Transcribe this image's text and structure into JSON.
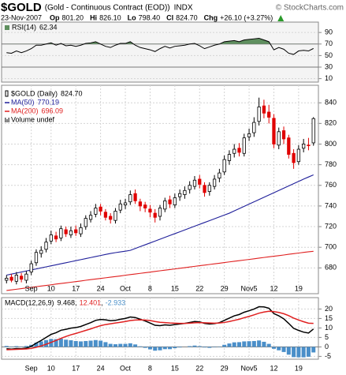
{
  "header": {
    "symbol": "$GOLD",
    "description": "(Gold - Continuous Contract (EOD))",
    "exchange": "INDX",
    "copyright": "© StockCharts.com",
    "date": "23-Nov-2007",
    "quote": [
      {
        "label": "Op",
        "value": "801.20"
      },
      {
        "label": "Hi",
        "value": "826.10"
      },
      {
        "label": "Lo",
        "value": "798.40"
      },
      {
        "label": "Cl",
        "value": "824.70"
      },
      {
        "label": "Chg",
        "value": "+26.10 (+3.27%)"
      }
    ]
  },
  "chart_data": [
    {
      "type": "line",
      "xlim": [
        -1,
        63
      ],
      "ylim": [
        4,
        108
      ],
      "yticks": [
        90,
        70,
        50,
        30,
        10
      ],
      "emphasized_ticks": [
        70,
        30
      ],
      "fill_above": 70,
      "fill_color": "#5f8f5f",
      "series": [
        {
          "name": "RSI(14)",
          "color": "#000000",
          "values": [
            55,
            54,
            58,
            55,
            58,
            62,
            68,
            68,
            70,
            72,
            68,
            71,
            67,
            68,
            66,
            68,
            71,
            72,
            74,
            70,
            66,
            64,
            68,
            71,
            71,
            74,
            68,
            64,
            62,
            60,
            57,
            62,
            66,
            63,
            66,
            67,
            68,
            70,
            71,
            67,
            62,
            65,
            68,
            70,
            74,
            75,
            76,
            74,
            77,
            78,
            79,
            80,
            77,
            74,
            60,
            64,
            61,
            54,
            52,
            58,
            59,
            58,
            62.34
          ]
        }
      ]
    },
    {
      "type": "candlestick",
      "xlim": [
        -1,
        63
      ],
      "ylim": [
        655,
        857
      ],
      "yticks": [
        680,
        700,
        720,
        740,
        760,
        780,
        800,
        820,
        840
      ],
      "xticks": [
        {
          "value": 5,
          "label": "Sep"
        },
        {
          "value": 9,
          "label": "10"
        },
        {
          "value": 14,
          "label": "17"
        },
        {
          "value": 19,
          "label": "24"
        },
        {
          "value": 24,
          "label": "Oct"
        },
        {
          "value": 29,
          "label": "8"
        },
        {
          "value": 34,
          "label": "15"
        },
        {
          "value": 39,
          "label": "22"
        },
        {
          "value": 44,
          "label": "29"
        },
        {
          "value": 49,
          "label": "Nov5"
        },
        {
          "value": 54,
          "label": "12"
        },
        {
          "value": 59,
          "label": "19"
        }
      ],
      "name": "$GOLD (Daily)",
      "legend_value_label": "824.70",
      "volume_label": "Volume undef",
      "up_color": "#000000",
      "down_color": "#e00000",
      "open": [
        668,
        671,
        667,
        672,
        668,
        676,
        685,
        694,
        698,
        706,
        711,
        709,
        717,
        712,
        717,
        713,
        720,
        727,
        732,
        739,
        734,
        730,
        726,
        736,
        741,
        744,
        752,
        744,
        741,
        737,
        733,
        730,
        737,
        746,
        741,
        749,
        751,
        756,
        759,
        766,
        760,
        754,
        759,
        767,
        773,
        784,
        791,
        796,
        791,
        807,
        811,
        822,
        837,
        831,
        825,
        799,
        813,
        806,
        791,
        783,
        796,
        799,
        801.2
      ],
      "high": [
        673,
        674,
        676,
        675,
        677,
        687,
        698,
        701,
        709,
        716,
        715,
        721,
        720,
        720,
        721,
        723,
        731,
        735,
        742,
        742,
        737,
        733,
        738,
        746,
        747,
        755,
        756,
        747,
        744,
        741,
        737,
        741,
        748,
        750,
        752,
        756,
        759,
        764,
        769,
        770,
        763,
        763,
        770,
        776,
        789,
        794,
        800,
        801,
        810,
        815,
        826,
        845,
        843,
        838,
        829,
        816,
        817,
        809,
        795,
        799,
        805,
        806,
        826.1
      ],
      "low": [
        665,
        666,
        664,
        666,
        665,
        673,
        682,
        690,
        695,
        703,
        705,
        706,
        710,
        709,
        711,
        710,
        717,
        724,
        729,
        731,
        726,
        723,
        723,
        733,
        737,
        741,
        742,
        735,
        734,
        729,
        724,
        726,
        734,
        738,
        738,
        745,
        747,
        752,
        756,
        757,
        749,
        750,
        756,
        763,
        770,
        780,
        787,
        788,
        788,
        803,
        807,
        818,
        825,
        820,
        796,
        795,
        800,
        786,
        776,
        780,
        792,
        794,
        798.4
      ],
      "close": [
        670,
        668,
        673,
        669,
        674,
        684,
        695,
        697,
        705,
        712,
        708,
        718,
        713,
        716,
        714,
        719,
        728,
        731,
        738,
        735,
        729,
        727,
        735,
        742,
        743,
        751,
        745,
        740,
        738,
        734,
        729,
        738,
        745,
        742,
        748,
        752,
        755,
        760,
        765,
        761,
        753,
        760,
        766,
        772,
        785,
        790,
        795,
        792,
        806,
        810,
        821,
        836,
        830,
        826,
        800,
        812,
        805,
        790,
        782,
        795,
        800,
        798.6,
        824.7
      ],
      "overlays": [
        {
          "name": "MA(50)",
          "color": "#1f1f9a",
          "values": [
            673,
            674,
            675,
            676,
            677,
            678,
            679,
            680,
            681,
            682,
            683,
            684,
            685,
            686,
            687,
            688,
            689,
            690,
            691,
            692,
            693,
            694,
            694.8,
            695.5,
            696.2,
            697,
            698.8,
            700.6,
            702.4,
            704.2,
            706,
            707.8,
            709.6,
            711.4,
            713.2,
            715,
            716.8,
            718.6,
            720.4,
            722.2,
            724,
            725.8,
            727.6,
            729.4,
            731.2,
            733,
            735.2,
            737.4,
            739.6,
            741.8,
            744,
            746.2,
            748.4,
            750.6,
            752.8,
            755,
            757.2,
            759.4,
            761.6,
            763.8,
            766,
            768.1,
            770.19
          ]
        },
        {
          "name": "MA(200)",
          "color": "#e02020",
          "values": [
            658.1,
            658.7,
            659.3,
            659.9,
            660.6,
            661.2,
            661.8,
            662.4,
            663.0,
            663.6,
            664.3,
            664.9,
            665.5,
            666.1,
            666.7,
            667.3,
            668.0,
            668.6,
            669.2,
            669.8,
            670.4,
            671.0,
            671.6,
            672.2,
            672.9,
            673.5,
            674.1,
            674.7,
            675.3,
            675.9,
            676.6,
            677.2,
            677.8,
            678.4,
            679.0,
            679.6,
            680.2,
            680.9,
            681.5,
            682.1,
            682.7,
            683.3,
            683.9,
            684.5,
            685.2,
            685.8,
            686.4,
            687.0,
            687.6,
            688.2,
            688.8,
            689.5,
            690.1,
            690.7,
            691.3,
            691.9,
            692.5,
            693.2,
            693.8,
            694.4,
            695.0,
            695.6,
            696.09
          ]
        }
      ]
    },
    {
      "type": "line",
      "xlim": [
        -1,
        63
      ],
      "ylim": [
        -6.5,
        26
      ],
      "yticks": [
        20,
        15,
        10,
        5,
        0,
        -5
      ],
      "emphasized_ticks": [
        0
      ],
      "label": "MACD(12,26,9)",
      "separator": ",",
      "xticks": [
        {
          "value": 5,
          "label": "Sep"
        },
        {
          "value": 9,
          "label": "10"
        },
        {
          "value": 14,
          "label": "17"
        },
        {
          "value": 19,
          "label": "24"
        },
        {
          "value": 24,
          "label": "Oct"
        },
        {
          "value": 29,
          "label": "8"
        },
        {
          "value": 34,
          "label": "15"
        },
        {
          "value": 39,
          "label": "22"
        },
        {
          "value": 44,
          "label": "29"
        },
        {
          "value": 49,
          "label": "Nov5"
        },
        {
          "value": 54,
          "label": "12"
        },
        {
          "value": 59,
          "label": "19"
        }
      ],
      "histogram": {
        "color": "#4a8fc9",
        "values": [
          0.5,
          0.2,
          0.4,
          0.2,
          0.5,
          1.1,
          2.2,
          2.9,
          3.6,
          4.2,
          4.1,
          4.3,
          3.8,
          3.5,
          3.1,
          2.9,
          3.1,
          3.3,
          3.6,
          3.3,
          2.5,
          1.6,
          1.4,
          1.6,
          1.6,
          1.9,
          1.3,
          0.3,
          -0.5,
          -1.3,
          -2.0,
          -1.8,
          -1.2,
          -1.2,
          -0.7,
          -0.3,
          0.0,
          0.4,
          0.7,
          0.4,
          -0.3,
          -0.5,
          -0.2,
          0.2,
          1.1,
          1.8,
          2.4,
          2.5,
          2.9,
          3.0,
          3.1,
          3.4,
          2.7,
          1.6,
          -1.0,
          -1.8,
          -2.7,
          -4.1,
          -5.4,
          -5.5,
          -5.5,
          -5.2,
          -2.933
        ]
      },
      "series": [
        {
          "color": "#000000",
          "values": [
            -1,
            -1.2,
            -0.9,
            -1,
            -0.6,
            0.3,
            2,
            3.4,
            5,
            6.6,
            7.5,
            8.8,
            9.3,
            9.9,
            10.2,
            10.8,
            11.8,
            12.8,
            14,
            14.5,
            14.3,
            13.8,
            14,
            14.6,
            15,
            15.8,
            15.5,
            14.6,
            13.7,
            12.6,
            11.4,
            11.2,
            11.6,
            11.4,
            11.8,
            12.1,
            12.4,
            12.9,
            13.4,
            13.2,
            12.4,
            12.1,
            12.3,
            12.8,
            14,
            15.2,
            16.4,
            17.1,
            18.3,
            19.1,
            20,
            21.2,
            21.1,
            20.4,
            17.6,
            16.4,
            14.8,
            12.4,
            9.8,
            8.7,
            7.8,
            7.3,
            9.468
          ]
        },
        {
          "color": "#e02020",
          "values": [
            -1.5,
            -1.4,
            -1.3,
            -1.2,
            -1.1,
            -0.8,
            -0.2,
            0.5,
            1.4,
            2.4,
            3.4,
            4.5,
            5.5,
            6.4,
            7.1,
            7.9,
            8.7,
            9.5,
            10.4,
            11.2,
            11.8,
            12.2,
            12.6,
            13,
            13.4,
            13.9,
            14.2,
            14.3,
            14.2,
            13.9,
            13.4,
            13,
            12.8,
            12.6,
            12.5,
            12.4,
            12.4,
            12.5,
            12.7,
            12.8,
            12.7,
            12.6,
            12.5,
            12.6,
            12.9,
            13.4,
            14,
            14.6,
            15.4,
            16.1,
            16.9,
            17.8,
            18.4,
            18.8,
            18.6,
            18.2,
            17.5,
            16.5,
            15.2,
            14.2,
            13.3,
            12.5,
            12.401
          ]
        }
      ]
    }
  ]
}
